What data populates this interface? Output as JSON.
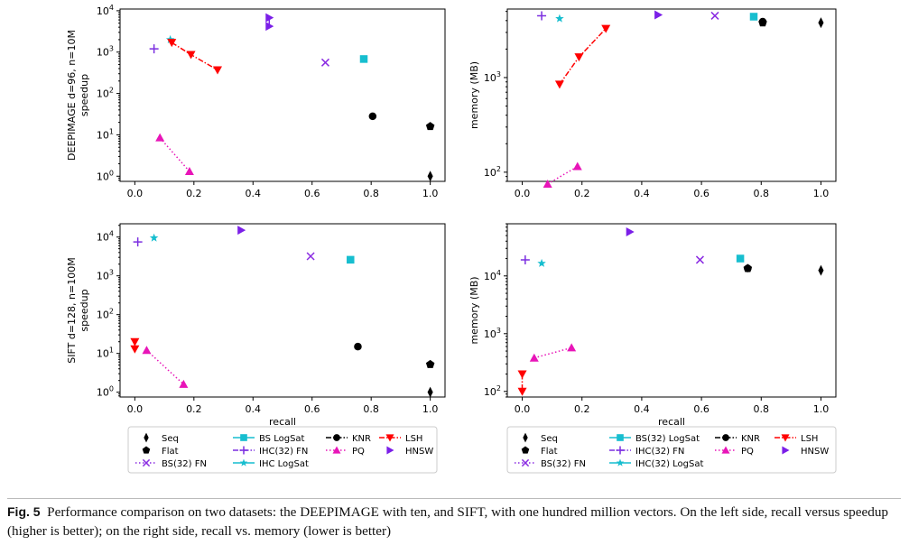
{
  "figure_caption": {
    "label": "Fig. 5",
    "text": "Performance comparison on two datasets: the DEEPIMAGE with ten, and SIFT, with one hundred million vectors. On the left side, recall versus speedup (higher is better); on the right side, recall vs. memory (lower is better)"
  },
  "legends": {
    "left": {
      "columns": [
        [
          "Seq",
          "Flat",
          "BS(32) FN"
        ],
        [
          "BS LogSat",
          "IHC(32) FN",
          "IHC LogSat"
        ],
        [
          "KNR",
          "PQ"
        ],
        [
          "LSH",
          "HNSW"
        ]
      ]
    },
    "right": {
      "columns": [
        [
          "Seq",
          "Flat",
          "BS(32) FN"
        ],
        [
          "BS(32) LogSat",
          "IHC(32) FN",
          "IHC(32) LogSat"
        ],
        [
          "KNR",
          "PQ"
        ],
        [
          "LSH",
          "HNSW"
        ]
      ]
    }
  },
  "method_styles": {
    "Seq": {
      "marker": "thin_diamond",
      "color": "#000000"
    },
    "Flat": {
      "marker": "pentagon",
      "color": "#000000"
    },
    "BS(32) FN": {
      "marker": "x",
      "color": "#8a2be2",
      "line": "dotted"
    },
    "BS LogSat": {
      "marker": "square",
      "color": "#17becf"
    },
    "BS(32) LogSat": {
      "marker": "square",
      "color": "#17becf"
    },
    "IHC(32) FN": {
      "marker": "plus",
      "color": "#7b2fe0",
      "line": "dashdot"
    },
    "IHC LogSat": {
      "marker": "star",
      "color": "#17becf"
    },
    "IHC(32) LogSat": {
      "marker": "star",
      "color": "#17becf"
    },
    "KNR": {
      "marker": "circle",
      "color": "#000000",
      "line": "dashdot"
    },
    "PQ": {
      "marker": "triangle_up",
      "color": "#e815b8",
      "line": "dotted"
    },
    "LSH": {
      "marker": "triangle_down",
      "color": "#ff0000",
      "line": "dashdot"
    },
    "HNSW": {
      "marker": "triangle_right",
      "color": "#7b1fe8"
    }
  },
  "chart_data": [
    {
      "type": "scatter",
      "title": "",
      "xlabel": "",
      "ylabel": "DEEPIMAGE d=96, n=10M\nspeedup",
      "yscale": "log",
      "xlim": [
        -0.05,
        1.05
      ],
      "ylim": [
        0.75,
        11000
      ],
      "xticks": [
        "0.0",
        "0.2",
        "0.4",
        "0.6",
        "0.8",
        "1.0"
      ],
      "yticks": [
        "10^0",
        "10^1",
        "10^2",
        "10^3",
        "10^4"
      ],
      "series": [
        {
          "name": "Seq",
          "points": [
            [
              1.0,
              1.0
            ]
          ]
        },
        {
          "name": "Flat",
          "points": [
            [
              1.0,
              16
            ]
          ]
        },
        {
          "name": "BS(32) FN",
          "points": [
            [
              0.645,
              560
            ]
          ]
        },
        {
          "name": "BS LogSat",
          "points": [
            [
              0.775,
              680
            ]
          ]
        },
        {
          "name": "IHC(32) FN",
          "points": [
            [
              0.065,
              1200
            ]
          ]
        },
        {
          "name": "IHC LogSat",
          "points": [
            [
              0.12,
              2000
            ]
          ]
        },
        {
          "name": "KNR",
          "points": [
            [
              0.805,
              28
            ]
          ]
        },
        {
          "name": "PQ",
          "points": [
            [
              0.085,
              8.5
            ],
            [
              0.185,
              1.3
            ]
          ]
        },
        {
          "name": "LSH",
          "points": [
            [
              0.125,
              1700
            ],
            [
              0.19,
              870
            ],
            [
              0.28,
              370
            ]
          ]
        },
        {
          "name": "HNSW",
          "points": [
            [
              0.455,
              6800
            ],
            [
              0.455,
              4200
            ]
          ]
        }
      ]
    },
    {
      "type": "scatter",
      "title": "",
      "xlabel": "",
      "ylabel": "memory (MB)",
      "yscale": "log",
      "xlim": [
        -0.05,
        1.05
      ],
      "ylim": [
        80,
        5300
      ],
      "xticks": [
        "0.0",
        "0.2",
        "0.4",
        "0.6",
        "0.8",
        "1.0"
      ],
      "yticks": [
        "10^2",
        "10^3"
      ],
      "series": [
        {
          "name": "Seq",
          "points": [
            [
              1.0,
              3800
            ]
          ]
        },
        {
          "name": "Flat",
          "points": [
            [
              0.805,
              3800
            ]
          ]
        },
        {
          "name": "BS(32) FN",
          "points": [
            [
              0.645,
              4500
            ]
          ]
        },
        {
          "name": "BS(32) LogSat",
          "points": [
            [
              0.775,
              4400
            ]
          ]
        },
        {
          "name": "IHC(32) FN",
          "points": [
            [
              0.065,
              4500
            ]
          ]
        },
        {
          "name": "IHC(32) LogSat",
          "points": [
            [
              0.125,
              4200
            ]
          ]
        },
        {
          "name": "KNR",
          "points": [
            [
              0.805,
              3900
            ]
          ]
        },
        {
          "name": "PQ",
          "points": [
            [
              0.085,
              75
            ],
            [
              0.185,
              115
            ]
          ]
        },
        {
          "name": "LSH",
          "points": [
            [
              0.125,
              850
            ],
            [
              0.19,
              1650
            ],
            [
              0.28,
              3300
            ]
          ]
        },
        {
          "name": "HNSW",
          "points": [
            [
              0.455,
              4600
            ]
          ]
        }
      ]
    },
    {
      "type": "scatter",
      "title": "",
      "xlabel": "recall",
      "ylabel": "SIFT d=128, n=100M\nspeedup",
      "yscale": "log",
      "xlim": [
        -0.05,
        1.05
      ],
      "ylim": [
        0.75,
        22000
      ],
      "xticks": [
        "0.0",
        "0.2",
        "0.4",
        "0.6",
        "0.8",
        "1.0"
      ],
      "yticks": [
        "10^0",
        "10^1",
        "10^2",
        "10^3",
        "10^4"
      ],
      "series": [
        {
          "name": "Seq",
          "points": [
            [
              1.0,
              1.0
            ]
          ]
        },
        {
          "name": "Flat",
          "points": [
            [
              1.0,
              5.2
            ]
          ]
        },
        {
          "name": "BS(32) FN",
          "points": [
            [
              0.595,
              3200
            ]
          ]
        },
        {
          "name": "BS LogSat",
          "points": [
            [
              0.73,
              2600
            ]
          ]
        },
        {
          "name": "IHC(32) FN",
          "points": [
            [
              0.01,
              7500
            ]
          ]
        },
        {
          "name": "IHC LogSat",
          "points": [
            [
              0.065,
              9500
            ]
          ]
        },
        {
          "name": "KNR",
          "points": [
            [
              0.755,
              15
            ]
          ]
        },
        {
          "name": "PQ",
          "points": [
            [
              0.04,
              12
            ],
            [
              0.165,
              1.6
            ]
          ]
        },
        {
          "name": "LSH",
          "points": [
            [
              0.0,
              20
            ],
            [
              0.0,
              13
            ]
          ]
        },
        {
          "name": "HNSW",
          "points": [
            [
              0.36,
              15000
            ]
          ]
        }
      ]
    },
    {
      "type": "scatter",
      "title": "",
      "xlabel": "recall",
      "ylabel": "memory (MB)",
      "yscale": "log",
      "xlim": [
        -0.05,
        1.05
      ],
      "ylim": [
        80,
        80000
      ],
      "xticks": [
        "0.0",
        "0.2",
        "0.4",
        "0.6",
        "0.8",
        "1.0"
      ],
      "yticks": [
        "10^2",
        "10^3",
        "10^4"
      ],
      "series": [
        {
          "name": "Seq",
          "points": [
            [
              1.0,
              12500
            ]
          ]
        },
        {
          "name": "Flat",
          "points": [
            [
              0.755,
              13500
            ]
          ]
        },
        {
          "name": "BS(32) FN",
          "points": [
            [
              0.595,
              19000
            ]
          ]
        },
        {
          "name": "BS(32) LogSat",
          "points": [
            [
              0.73,
              20000
            ]
          ]
        },
        {
          "name": "IHC(32) FN",
          "points": [
            [
              0.01,
              19000
            ]
          ]
        },
        {
          "name": "IHC(32) LogSat",
          "points": [
            [
              0.065,
              16500
            ]
          ]
        },
        {
          "name": "KNR",
          "points": [
            [
              0.755,
              13500
            ]
          ]
        },
        {
          "name": "PQ",
          "points": [
            [
              0.04,
              380
            ],
            [
              0.165,
              570
            ]
          ]
        },
        {
          "name": "LSH",
          "points": [
            [
              0.0,
              200
            ],
            [
              0.0,
              100
            ]
          ]
        },
        {
          "name": "HNSW",
          "points": [
            [
              0.36,
              58000
            ]
          ]
        }
      ]
    }
  ]
}
